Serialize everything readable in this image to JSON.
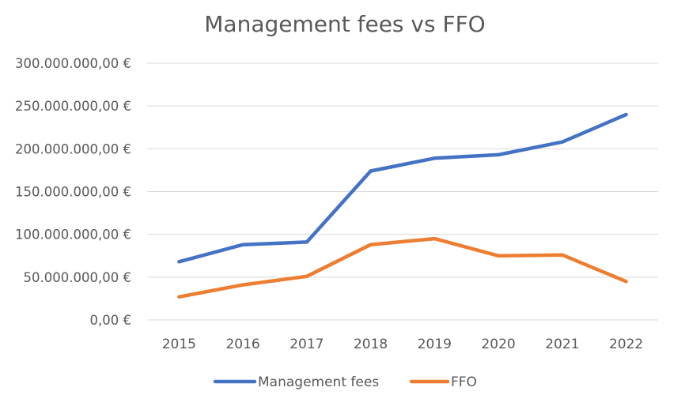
{
  "chart_data": {
    "type": "line",
    "title": "Management fees vs FFO",
    "xlabel": "",
    "ylabel": "",
    "categories": [
      "2015",
      "2016",
      "2017",
      "2018",
      "2019",
      "2020",
      "2021",
      "2022"
    ],
    "ylim": [
      0,
      300000000
    ],
    "yticks": [
      0,
      50000000,
      100000000,
      150000000,
      200000000,
      250000000,
      300000000
    ],
    "ytick_labels": [
      "0,00 €",
      "50.000.000,00 €",
      "100.000.000,00 €",
      "150.000.000,00 €",
      "200.000.000,00 €",
      "250.000.000,00 €",
      "300.000.000,00 €"
    ],
    "grid": true,
    "legend_position": "bottom",
    "series": [
      {
        "name": "Management fees",
        "color": "#4472C4",
        "values": [
          68000000,
          88000000,
          91000000,
          174000000,
          189000000,
          193000000,
          208000000,
          240000000
        ]
      },
      {
        "name": "FFO",
        "color": "#ED7D31",
        "values": [
          27000000,
          41000000,
          51000000,
          88000000,
          95000000,
          75000000,
          76000000,
          45000000
        ]
      }
    ]
  }
}
